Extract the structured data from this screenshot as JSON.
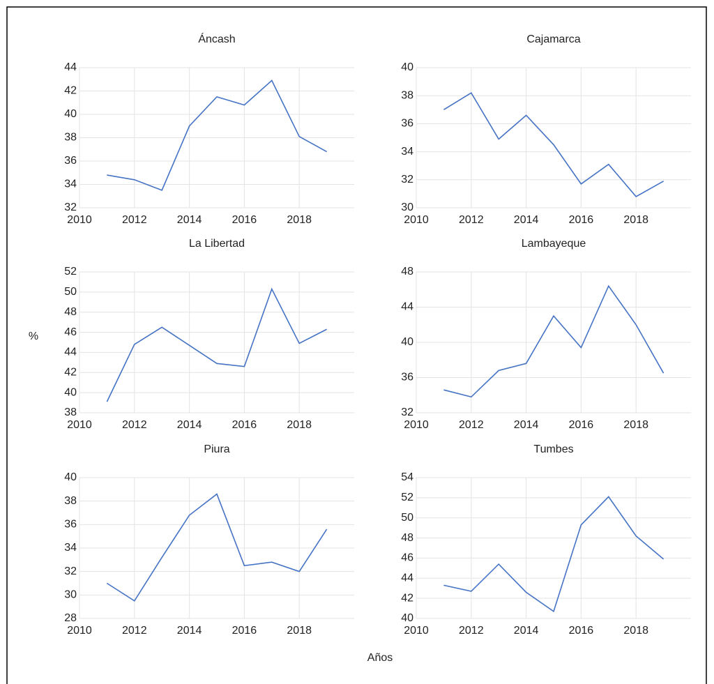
{
  "ylabel": "%",
  "xlabel": "Años",
  "chart_data": [
    {
      "type": "line",
      "title": "Áncash",
      "x": [
        2011,
        2012,
        2013,
        2014,
        2015,
        2016,
        2017,
        2018,
        2019
      ],
      "series": [
        {
          "color": "#4472c4",
          "values": [
            34.8,
            34.4,
            33.5,
            39.0,
            41.5,
            40.8,
            42.9,
            38.1,
            36.8
          ]
        }
      ],
      "xlim": [
        2010,
        2020
      ],
      "xticks": [
        2010,
        2012,
        2014,
        2016,
        2018
      ],
      "ylim": [
        32,
        44
      ],
      "yticks": [
        32,
        34,
        36,
        38,
        40,
        42,
        44
      ],
      "grid": true
    },
    {
      "type": "line",
      "title": "Cajamarca",
      "x": [
        2011,
        2012,
        2013,
        2014,
        2015,
        2016,
        2017,
        2018,
        2019
      ],
      "series": [
        {
          "color": "#4472c4",
          "values": [
            37.0,
            38.2,
            34.9,
            36.6,
            34.5,
            31.7,
            33.1,
            30.8,
            31.9
          ]
        }
      ],
      "xlim": [
        2010,
        2020
      ],
      "xticks": [
        2010,
        2012,
        2014,
        2016,
        2018
      ],
      "ylim": [
        30,
        40
      ],
      "yticks": [
        30,
        32,
        34,
        36,
        38,
        40
      ],
      "grid": true
    },
    {
      "type": "line",
      "title": "La Libertad",
      "x": [
        2011,
        2012,
        2013,
        2014,
        2015,
        2016,
        2017,
        2018,
        2019
      ],
      "series": [
        {
          "color": "#4472c4",
          "values": [
            39.1,
            44.8,
            46.5,
            44.7,
            42.9,
            42.6,
            50.3,
            44.9,
            46.3
          ]
        }
      ],
      "xlim": [
        2010,
        2020
      ],
      "xticks": [
        2010,
        2012,
        2014,
        2016,
        2018
      ],
      "ylim": [
        38,
        52
      ],
      "yticks": [
        38,
        40,
        42,
        44,
        46,
        48,
        50,
        52
      ],
      "grid": true
    },
    {
      "type": "line",
      "title": "Lambayeque",
      "x": [
        2011,
        2012,
        2013,
        2014,
        2015,
        2016,
        2017,
        2018,
        2019
      ],
      "series": [
        {
          "color": "#4472c4",
          "values": [
            34.6,
            33.8,
            36.8,
            37.6,
            43.0,
            39.4,
            46.4,
            42.0,
            36.5
          ]
        }
      ],
      "xlim": [
        2010,
        2020
      ],
      "xticks": [
        2010,
        2012,
        2014,
        2016,
        2018
      ],
      "ylim": [
        32,
        48
      ],
      "yticks": [
        32,
        36,
        40,
        44,
        48
      ],
      "grid": true
    },
    {
      "type": "line",
      "title": "Piura",
      "x": [
        2011,
        2012,
        2013,
        2014,
        2015,
        2016,
        2017,
        2018,
        2019
      ],
      "series": [
        {
          "color": "#4472c4",
          "values": [
            31.0,
            29.5,
            33.2,
            36.8,
            38.6,
            32.5,
            32.8,
            32.0,
            35.6
          ]
        }
      ],
      "xlim": [
        2010,
        2020
      ],
      "xticks": [
        2010,
        2012,
        2014,
        2016,
        2018
      ],
      "ylim": [
        28,
        40
      ],
      "yticks": [
        28,
        30,
        32,
        34,
        36,
        38,
        40
      ],
      "grid": true
    },
    {
      "type": "line",
      "title": "Tumbes",
      "x": [
        2011,
        2012,
        2013,
        2014,
        2015,
        2016,
        2017,
        2018,
        2019
      ],
      "series": [
        {
          "color": "#4472c4",
          "values": [
            43.3,
            42.7,
            45.4,
            42.6,
            40.7,
            49.3,
            52.1,
            48.2,
            45.9
          ]
        }
      ],
      "xlim": [
        2010,
        2020
      ],
      "xticks": [
        2010,
        2012,
        2014,
        2016,
        2018
      ],
      "ylim": [
        40,
        54
      ],
      "yticks": [
        40,
        42,
        44,
        46,
        48,
        50,
        52,
        54
      ],
      "grid": true
    }
  ]
}
